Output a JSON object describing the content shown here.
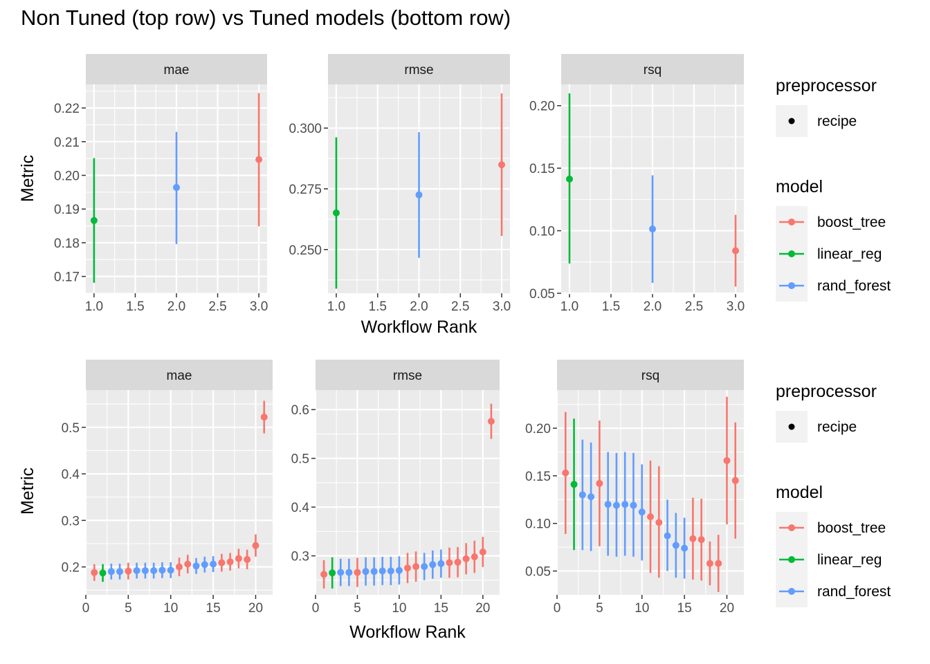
{
  "title": "Non Tuned (top row) vs Tuned models (bottom row)",
  "colors": {
    "boost_tree": "#F8766D",
    "linear_reg": "#00BA38",
    "rand_forest": "#619CFF",
    "panel_bg": "#EBEBEB",
    "strip_bg": "#D9D9D9",
    "grid": "#FFFFFF"
  },
  "legend": {
    "preprocessor_title": "preprocessor",
    "preprocessor_items": [
      "recipe"
    ],
    "model_title": "model",
    "model_items": [
      "boost_tree",
      "linear_reg",
      "rand_forest"
    ]
  },
  "chart_data": [
    {
      "type": "scatter",
      "row": "top",
      "ylabel": "Metric",
      "xlabel": "Workflow Rank",
      "panels": [
        {
          "strip": "mae",
          "xlim": [
            0.9,
            3.1
          ],
          "ylim": [
            0.165,
            0.227
          ],
          "xticks": [
            1.0,
            1.5,
            2.0,
            2.5,
            3.0
          ],
          "xtick_labels": [
            "1.0",
            "1.5",
            "2.0",
            "2.5",
            "3.0"
          ],
          "yticks": [
            0.17,
            0.18,
            0.19,
            0.2,
            0.21,
            0.22
          ],
          "ytick_labels": [
            "0.17",
            "0.18",
            "0.19",
            "0.20",
            "0.21",
            "0.22"
          ],
          "points": [
            {
              "x": 1,
              "y": 0.1866,
              "lo": 0.1681,
              "hi": 0.2051,
              "model": "linear_reg"
            },
            {
              "x": 2,
              "y": 0.1964,
              "lo": 0.1796,
              "hi": 0.2129,
              "model": "rand_forest"
            },
            {
              "x": 3,
              "y": 0.2047,
              "lo": 0.1849,
              "hi": 0.2244,
              "model": "boost_tree"
            }
          ]
        },
        {
          "strip": "rmse",
          "xlim": [
            0.9,
            3.1
          ],
          "ylim": [
            0.232,
            0.318
          ],
          "xticks": [
            1.0,
            1.5,
            2.0,
            2.5,
            3.0
          ],
          "xtick_labels": [
            "1.0",
            "1.5",
            "2.0",
            "2.5",
            "3.0"
          ],
          "yticks": [
            0.25,
            0.275,
            0.3
          ],
          "ytick_labels": [
            "0.250",
            "0.275",
            "0.300"
          ],
          "points": [
            {
              "x": 1,
              "y": 0.2651,
              "lo": 0.2339,
              "hi": 0.2962,
              "model": "linear_reg"
            },
            {
              "x": 2,
              "y": 0.2725,
              "lo": 0.2466,
              "hi": 0.2983,
              "model": "rand_forest"
            },
            {
              "x": 3,
              "y": 0.2849,
              "lo": 0.2556,
              "hi": 0.3143,
              "model": "boost_tree"
            }
          ]
        },
        {
          "strip": "rsq",
          "xlim": [
            0.9,
            3.1
          ],
          "ylim": [
            0.05,
            0.217
          ],
          "xticks": [
            1.0,
            1.5,
            2.0,
            2.5,
            3.0
          ],
          "xtick_labels": [
            "1.0",
            "1.5",
            "2.0",
            "2.5",
            "3.0"
          ],
          "yticks": [
            0.05,
            0.1,
            0.15,
            0.2
          ],
          "ytick_labels": [
            "0.05",
            "0.10",
            "0.15",
            "0.20"
          ],
          "points": [
            {
              "x": 1,
              "y": 0.1413,
              "lo": 0.0738,
              "hi": 0.2098,
              "model": "linear_reg"
            },
            {
              "x": 2,
              "y": 0.1014,
              "lo": 0.0583,
              "hi": 0.1443,
              "model": "rand_forest"
            },
            {
              "x": 3,
              "y": 0.084,
              "lo": 0.0553,
              "hi": 0.1127,
              "model": "boost_tree"
            }
          ]
        }
      ]
    },
    {
      "type": "scatter",
      "row": "bottom",
      "ylabel": "Metric",
      "xlabel": "Workflow Rank",
      "panels": [
        {
          "strip": "mae",
          "xlim": [
            0,
            22
          ],
          "ylim": [
            0.14,
            0.58
          ],
          "xticks": [
            0,
            5,
            10,
            15,
            20
          ],
          "xtick_labels": [
            "0",
            "5",
            "10",
            "15",
            "20"
          ],
          "yticks": [
            0.2,
            0.3,
            0.4,
            0.5
          ],
          "ytick_labels": [
            "0.2",
            "0.3",
            "0.4",
            "0.5"
          ],
          "points": [
            {
              "x": 1,
              "y": 0.188,
              "lo": 0.17,
              "hi": 0.206,
              "model": "boost_tree"
            },
            {
              "x": 2,
              "y": 0.187,
              "lo": 0.168,
              "hi": 0.206,
              "model": "linear_reg"
            },
            {
              "x": 3,
              "y": 0.19,
              "lo": 0.173,
              "hi": 0.207,
              "model": "rand_forest"
            },
            {
              "x": 4,
              "y": 0.19,
              "lo": 0.173,
              "hi": 0.207,
              "model": "rand_forest"
            },
            {
              "x": 5,
              "y": 0.191,
              "lo": 0.173,
              "hi": 0.209,
              "model": "boost_tree"
            },
            {
              "x": 6,
              "y": 0.192,
              "lo": 0.175,
              "hi": 0.209,
              "model": "rand_forest"
            },
            {
              "x": 7,
              "y": 0.192,
              "lo": 0.175,
              "hi": 0.209,
              "model": "rand_forest"
            },
            {
              "x": 8,
              "y": 0.192,
              "lo": 0.175,
              "hi": 0.209,
              "model": "rand_forest"
            },
            {
              "x": 9,
              "y": 0.193,
              "lo": 0.176,
              "hi": 0.21,
              "model": "rand_forest"
            },
            {
              "x": 10,
              "y": 0.193,
              "lo": 0.176,
              "hi": 0.21,
              "model": "rand_forest"
            },
            {
              "x": 11,
              "y": 0.2,
              "lo": 0.18,
              "hi": 0.22,
              "model": "boost_tree"
            },
            {
              "x": 12,
              "y": 0.206,
              "lo": 0.186,
              "hi": 0.226,
              "model": "boost_tree"
            },
            {
              "x": 13,
              "y": 0.202,
              "lo": 0.185,
              "hi": 0.219,
              "model": "rand_forest"
            },
            {
              "x": 14,
              "y": 0.205,
              "lo": 0.188,
              "hi": 0.222,
              "model": "rand_forest"
            },
            {
              "x": 15,
              "y": 0.206,
              "lo": 0.189,
              "hi": 0.223,
              "model": "rand_forest"
            },
            {
              "x": 16,
              "y": 0.209,
              "lo": 0.19,
              "hi": 0.228,
              "model": "boost_tree"
            },
            {
              "x": 17,
              "y": 0.211,
              "lo": 0.192,
              "hi": 0.23,
              "model": "boost_tree"
            },
            {
              "x": 18,
              "y": 0.218,
              "lo": 0.197,
              "hi": 0.239,
              "model": "boost_tree"
            },
            {
              "x": 19,
              "y": 0.216,
              "lo": 0.195,
              "hi": 0.237,
              "model": "boost_tree"
            },
            {
              "x": 20,
              "y": 0.246,
              "lo": 0.222,
              "hi": 0.27,
              "model": "boost_tree"
            },
            {
              "x": 21,
              "y": 0.522,
              "lo": 0.487,
              "hi": 0.557,
              "model": "boost_tree"
            }
          ]
        },
        {
          "strip": "rmse",
          "xlim": [
            0,
            22
          ],
          "ylim": [
            0.22,
            0.64
          ],
          "xticks": [
            0,
            5,
            10,
            15,
            20
          ],
          "xtick_labels": [
            "0",
            "5",
            "10",
            "15",
            "20"
          ],
          "yticks": [
            0.3,
            0.4,
            0.5,
            0.6
          ],
          "ytick_labels": [
            "0.3",
            "0.4",
            "0.5",
            "0.6"
          ],
          "points": [
            {
              "x": 1,
              "y": 0.262,
              "lo": 0.233,
              "hi": 0.291,
              "model": "boost_tree"
            },
            {
              "x": 2,
              "y": 0.265,
              "lo": 0.233,
              "hi": 0.297,
              "model": "linear_reg"
            },
            {
              "x": 3,
              "y": 0.266,
              "lo": 0.238,
              "hi": 0.294,
              "model": "rand_forest"
            },
            {
              "x": 4,
              "y": 0.266,
              "lo": 0.238,
              "hi": 0.294,
              "model": "rand_forest"
            },
            {
              "x": 5,
              "y": 0.266,
              "lo": 0.236,
              "hi": 0.296,
              "model": "boost_tree"
            },
            {
              "x": 6,
              "y": 0.268,
              "lo": 0.239,
              "hi": 0.297,
              "model": "rand_forest"
            },
            {
              "x": 7,
              "y": 0.268,
              "lo": 0.239,
              "hi": 0.297,
              "model": "rand_forest"
            },
            {
              "x": 8,
              "y": 0.269,
              "lo": 0.24,
              "hi": 0.298,
              "model": "rand_forest"
            },
            {
              "x": 9,
              "y": 0.269,
              "lo": 0.24,
              "hi": 0.298,
              "model": "rand_forest"
            },
            {
              "x": 10,
              "y": 0.27,
              "lo": 0.241,
              "hi": 0.299,
              "model": "rand_forest"
            },
            {
              "x": 11,
              "y": 0.275,
              "lo": 0.244,
              "hi": 0.306,
              "model": "boost_tree"
            },
            {
              "x": 12,
              "y": 0.278,
              "lo": 0.247,
              "hi": 0.309,
              "model": "boost_tree"
            },
            {
              "x": 13,
              "y": 0.278,
              "lo": 0.25,
              "hi": 0.306,
              "model": "rand_forest"
            },
            {
              "x": 14,
              "y": 0.282,
              "lo": 0.253,
              "hi": 0.311,
              "model": "rand_forest"
            },
            {
              "x": 15,
              "y": 0.284,
              "lo": 0.255,
              "hi": 0.313,
              "model": "rand_forest"
            },
            {
              "x": 16,
              "y": 0.286,
              "lo": 0.255,
              "hi": 0.317,
              "model": "boost_tree"
            },
            {
              "x": 17,
              "y": 0.287,
              "lo": 0.256,
              "hi": 0.318,
              "model": "boost_tree"
            },
            {
              "x": 18,
              "y": 0.294,
              "lo": 0.262,
              "hi": 0.326,
              "model": "boost_tree"
            },
            {
              "x": 19,
              "y": 0.298,
              "lo": 0.265,
              "hi": 0.331,
              "model": "boost_tree"
            },
            {
              "x": 20,
              "y": 0.308,
              "lo": 0.277,
              "hi": 0.339,
              "model": "boost_tree"
            },
            {
              "x": 21,
              "y": 0.576,
              "lo": 0.54,
              "hi": 0.612,
              "model": "boost_tree"
            }
          ]
        },
        {
          "strip": "rsq",
          "xlim": [
            0,
            22
          ],
          "ylim": [
            0.025,
            0.24
          ],
          "xticks": [
            0,
            5,
            10,
            15,
            20
          ],
          "xtick_labels": [
            "0",
            "5",
            "10",
            "15",
            "20"
          ],
          "yticks": [
            0.05,
            0.1,
            0.15,
            0.2
          ],
          "ytick_labels": [
            "0.05",
            "0.10",
            "0.15",
            "0.20"
          ],
          "points": [
            {
              "x": 1,
              "y": 0.153,
              "lo": 0.089,
              "hi": 0.217,
              "model": "boost_tree"
            },
            {
              "x": 2,
              "y": 0.141,
              "lo": 0.072,
              "hi": 0.21,
              "model": "linear_reg"
            },
            {
              "x": 3,
              "y": 0.13,
              "lo": 0.072,
              "hi": 0.188,
              "model": "rand_forest"
            },
            {
              "x": 4,
              "y": 0.128,
              "lo": 0.071,
              "hi": 0.185,
              "model": "rand_forest"
            },
            {
              "x": 5,
              "y": 0.142,
              "lo": 0.076,
              "hi": 0.208,
              "model": "boost_tree"
            },
            {
              "x": 6,
              "y": 0.12,
              "lo": 0.066,
              "hi": 0.175,
              "model": "rand_forest"
            },
            {
              "x": 7,
              "y": 0.119,
              "lo": 0.065,
              "hi": 0.174,
              "model": "rand_forest"
            },
            {
              "x": 8,
              "y": 0.12,
              "lo": 0.066,
              "hi": 0.175,
              "model": "rand_forest"
            },
            {
              "x": 9,
              "y": 0.119,
              "lo": 0.065,
              "hi": 0.174,
              "model": "rand_forest"
            },
            {
              "x": 10,
              "y": 0.112,
              "lo": 0.061,
              "hi": 0.162,
              "model": "rand_forest"
            },
            {
              "x": 11,
              "y": 0.107,
              "lo": 0.048,
              "hi": 0.166,
              "model": "boost_tree"
            },
            {
              "x": 12,
              "y": 0.101,
              "lo": 0.043,
              "hi": 0.16,
              "model": "boost_tree"
            },
            {
              "x": 13,
              "y": 0.087,
              "lo": 0.05,
              "hi": 0.125,
              "model": "rand_forest"
            },
            {
              "x": 14,
              "y": 0.077,
              "lo": 0.043,
              "hi": 0.111,
              "model": "rand_forest"
            },
            {
              "x": 15,
              "y": 0.074,
              "lo": 0.042,
              "hi": 0.106,
              "model": "rand_forest"
            },
            {
              "x": 16,
              "y": 0.084,
              "lo": 0.041,
              "hi": 0.127,
              "model": "boost_tree"
            },
            {
              "x": 17,
              "y": 0.083,
              "lo": 0.04,
              "hi": 0.126,
              "model": "boost_tree"
            },
            {
              "x": 18,
              "y": 0.058,
              "lo": 0.035,
              "hi": 0.081,
              "model": "boost_tree"
            },
            {
              "x": 19,
              "y": 0.058,
              "lo": 0.028,
              "hi": 0.088,
              "model": "boost_tree"
            },
            {
              "x": 20,
              "y": 0.166,
              "lo": 0.099,
              "hi": 0.233,
              "model": "boost_tree"
            },
            {
              "x": 21,
              "y": 0.145,
              "lo": 0.084,
              "hi": 0.206,
              "model": "boost_tree"
            }
          ]
        }
      ]
    }
  ]
}
